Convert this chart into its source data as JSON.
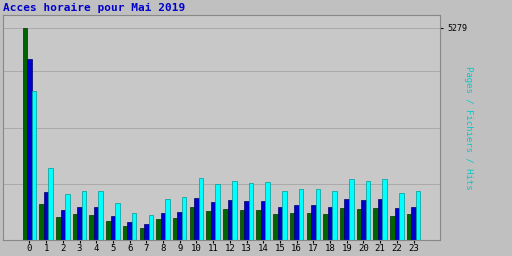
{
  "title": "Acces horaire pour Mai 2019",
  "ylabel": "Pages / Fichiers / Hits",
  "hours": [
    0,
    1,
    2,
    3,
    4,
    5,
    6,
    7,
    8,
    9,
    10,
    11,
    12,
    13,
    14,
    15,
    16,
    17,
    18,
    19,
    20,
    21,
    22,
    23
  ],
  "pages": [
    5279,
    900,
    580,
    640,
    630,
    480,
    340,
    310,
    520,
    560,
    820,
    730,
    770,
    750,
    760,
    640,
    670,
    670,
    640,
    800,
    770,
    800,
    610,
    640
  ],
  "fichiers": [
    4500,
    1200,
    750,
    820,
    810,
    600,
    440,
    400,
    670,
    710,
    1050,
    940,
    990,
    960,
    970,
    820,
    860,
    860,
    820,
    1030,
    990,
    1030,
    790,
    820
  ],
  "hits": [
    3700,
    1800,
    1150,
    1230,
    1220,
    920,
    680,
    620,
    1010,
    1060,
    1550,
    1400,
    1470,
    1430,
    1450,
    1220,
    1280,
    1280,
    1220,
    1530,
    1470,
    1530,
    1170,
    1220
  ],
  "color_pages": "#006400",
  "color_fichiers": "#0000CD",
  "color_hits": "#00FFFF",
  "title_color": "#0000CC",
  "ylabel_color": "#00CCCC",
  "bg_color": "#C0C0C0",
  "plot_bg_color": "#C8C8C8",
  "border_color": "#888888",
  "ylim": [
    0,
    5600
  ],
  "ytick_val": 5279
}
